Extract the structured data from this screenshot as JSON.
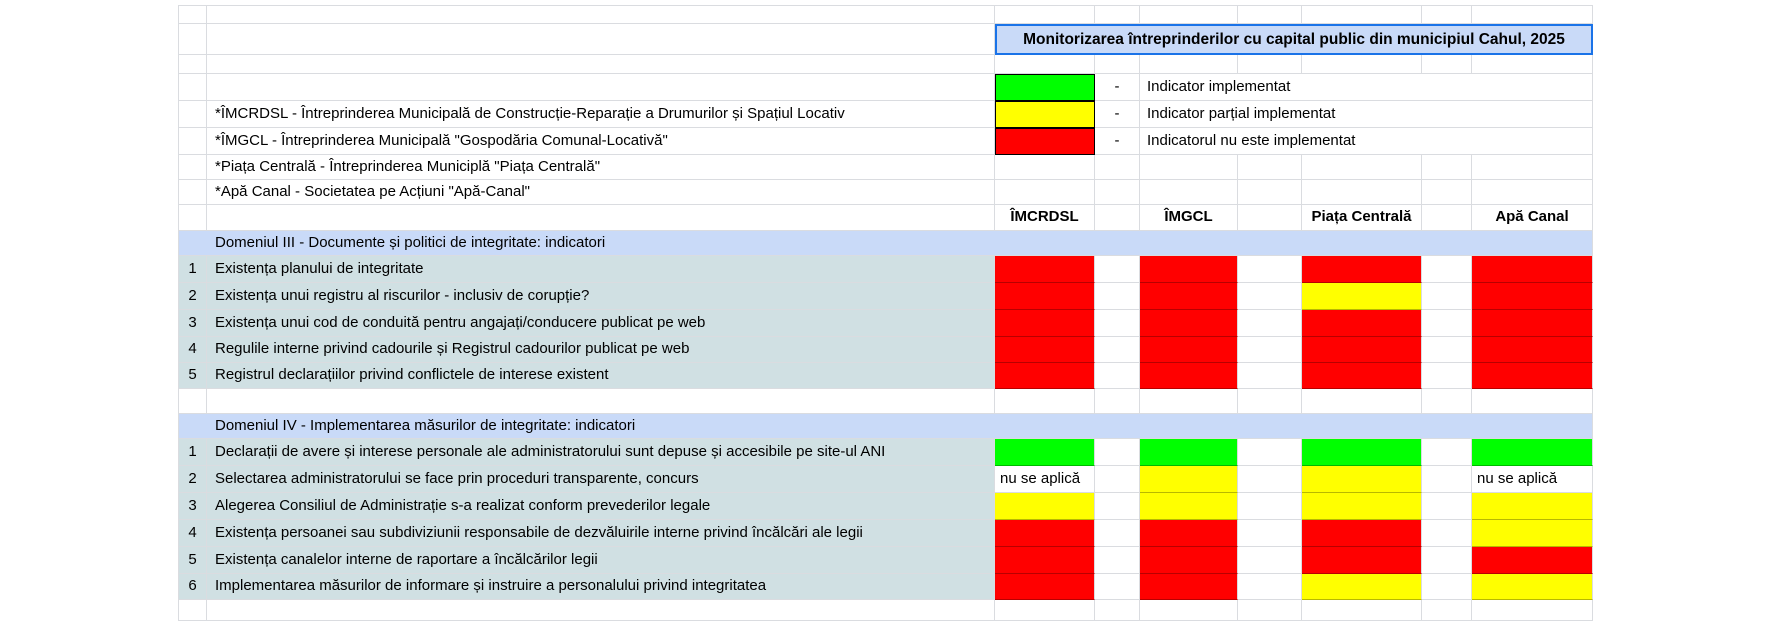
{
  "title": "Monitorizarea întreprinderilor cu capital public din municipiul Cahul, 2025",
  "legend": {
    "items": [
      {
        "status": "implemented",
        "color": "#00ff00",
        "dash": "-",
        "label": "Indicator implementat"
      },
      {
        "status": "partial",
        "color": "#ffff00",
        "dash": "-",
        "label": "Indicator parțial implementat"
      },
      {
        "status": "not_implemented",
        "color": "#ff0000",
        "dash": "-",
        "label": "Indicatorul nu este implementat"
      }
    ]
  },
  "notes": [
    "*ÎMCRDSL - Întreprinderea Municipală de Construcție-Reparație a Drumurilor și Spațiul Locativ",
    "*ÎMGCL - Întreprinderea Municipală \"Gospodăria Comunal-Locativă\"",
    "*Piața Centrală - Întreprinderea Municiplă \"Piața Centrală\"",
    "*Apă Canal - Societatea pe Acțiuni \"Apă-Canal\""
  ],
  "columns": [
    "ÎMCRDSL",
    "ÎMGCL",
    "Piața Centrală",
    "Apă Canal"
  ],
  "na_text": "nu se aplică",
  "colors": {
    "implemented": "#00ff00",
    "partial": "#ffff00",
    "not_implemented": "#ff0000",
    "section_header_bg": "#c9daf8",
    "indicator_row_bg": "#d0e0e3",
    "title_bg": "#c9daf8",
    "selection_border": "#1a73e8"
  },
  "sections": [
    {
      "header": "Domeniul III - Documente și politici de integritate: indicatori",
      "rows": [
        {
          "num": "1",
          "label": "Existența planului de integritate",
          "statuses": [
            "not_implemented",
            "not_implemented",
            "not_implemented",
            "not_implemented"
          ]
        },
        {
          "num": "2",
          "label": "Existența unui registru al riscurilor - inclusiv de corupție?",
          "statuses": [
            "not_implemented",
            "not_implemented",
            "partial",
            "not_implemented"
          ]
        },
        {
          "num": "3",
          "label": "Existența unui cod de conduită pentru angajați/conducere publicat pe web",
          "statuses": [
            "not_implemented",
            "not_implemented",
            "not_implemented",
            "not_implemented"
          ]
        },
        {
          "num": "4",
          "label": "Regulile interne privind cadourile și Registrul cadourilor publicat pe web",
          "statuses": [
            "not_implemented",
            "not_implemented",
            "not_implemented",
            "not_implemented"
          ]
        },
        {
          "num": "5",
          "label": "Registrul declarațiilor privind conflictele de interese existent",
          "statuses": [
            "not_implemented",
            "not_implemented",
            "not_implemented",
            "not_implemented"
          ]
        }
      ]
    },
    {
      "header": "Domeniul IV - Implementarea măsurilor de integritate: indicatori",
      "rows": [
        {
          "num": "1",
          "label": "Declarații de avere și interese personale ale administratorului sunt depuse și accesibile pe site-ul ANI",
          "statuses": [
            "implemented",
            "implemented",
            "implemented",
            "implemented"
          ]
        },
        {
          "num": "2",
          "label": "Selectarea administratorului se face prin proceduri transparente, concurs",
          "statuses": [
            "not_applicable",
            "partial",
            "partial",
            "not_applicable"
          ]
        },
        {
          "num": "3",
          "label": "Alegerea Consiliul de Administrație  s-a realizat conform prevederilor legale",
          "statuses": [
            "partial",
            "partial",
            "partial",
            "partial"
          ]
        },
        {
          "num": "4",
          "label": "Existența persoanei sau subdiviziunii responsabile de dezvăluirile interne privind încălcări ale legii",
          "statuses": [
            "not_implemented",
            "not_implemented",
            "not_implemented",
            "partial"
          ]
        },
        {
          "num": "5",
          "label": "Existența canalelor interne de raportare a încălcărilor legii",
          "statuses": [
            "not_implemented",
            "not_implemented",
            "not_implemented",
            "not_implemented"
          ]
        },
        {
          "num": "6",
          "label": "Implementarea măsurilor de informare și instruire a personalului privind integritatea",
          "statuses": [
            "not_implemented",
            "not_implemented",
            "partial",
            "partial"
          ]
        }
      ]
    }
  ]
}
